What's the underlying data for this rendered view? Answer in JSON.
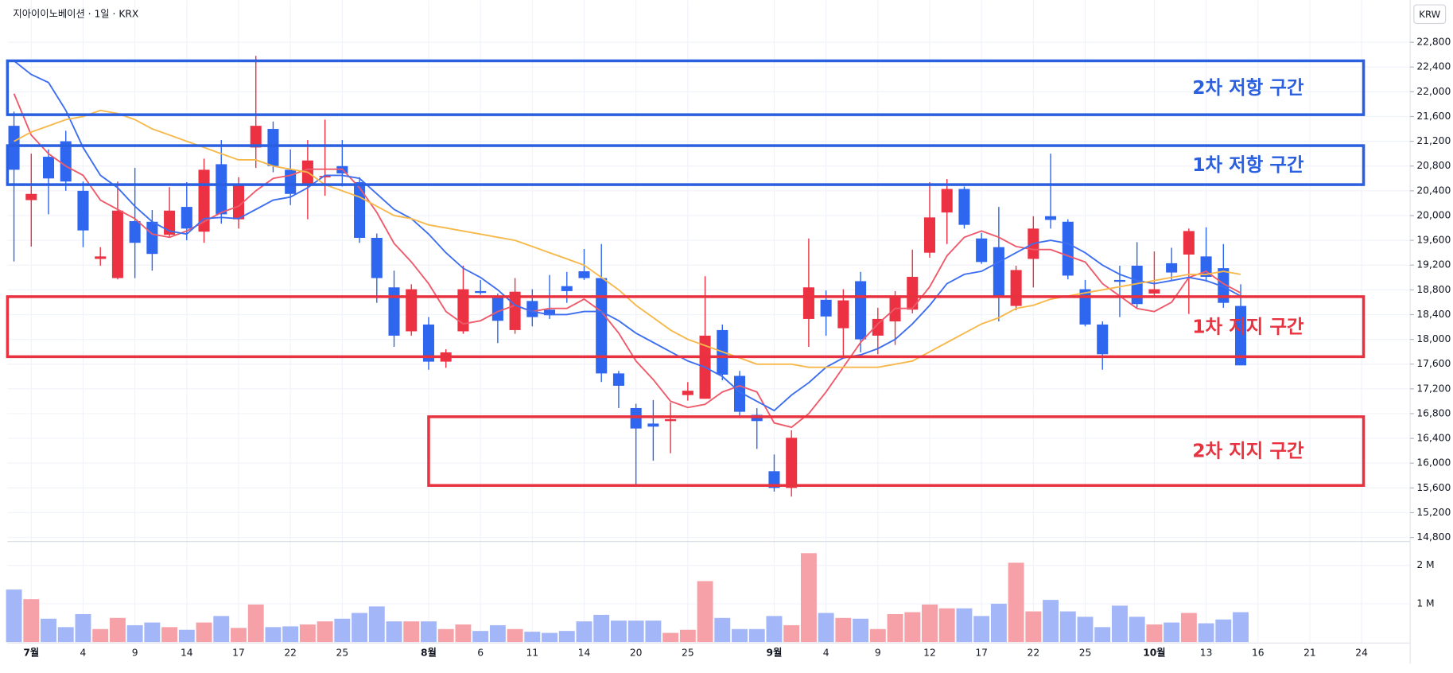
{
  "chart_data": {
    "type": "candlestick",
    "title": "지아이이노베이션 · 1일 · KRX",
    "currency": "KRW",
    "up_color": "#eb3142",
    "down_color": "#2f66f0",
    "volume_up_color": "#f6a0a8",
    "volume_down_color": "#a3b6f8",
    "grid": true,
    "categories": [
      null,
      "7월",
      null,
      null,
      "4",
      null,
      null,
      "9",
      null,
      null,
      "14",
      null,
      null,
      "17",
      null,
      null,
      "22",
      null,
      null,
      "25",
      null,
      null,
      null,
      null,
      "8월",
      null,
      null,
      "6",
      null,
      null,
      "11",
      null,
      null,
      "14",
      null,
      null,
      "20",
      null,
      null,
      "25",
      null,
      null,
      null,
      null,
      "9월",
      null,
      null,
      "4",
      null,
      null,
      "9",
      null,
      null,
      "12",
      null,
      null,
      "17",
      null,
      null,
      "22",
      null,
      null,
      "25",
      null,
      null,
      null,
      "10월",
      null,
      null,
      "13",
      null,
      null,
      "16",
      null,
      null,
      "21",
      null,
      null,
      "24"
    ],
    "open": [
      21450,
      20250,
      20950,
      21200,
      20400,
      19300,
      18990,
      19910,
      19900,
      19690,
      20140,
      19740,
      20830,
      19940,
      21100,
      21400,
      20740,
      20500,
      20620,
      20800,
      20540,
      19640,
      18840,
      18130,
      18240,
      17640,
      18130,
      18780,
      18690,
      18150,
      18620,
      18480,
      18860,
      19100,
      18990,
      17450,
      16890,
      16640,
      16680,
      17100,
      17040,
      18150,
      17410,
      16780,
      15870,
      15600,
      18330,
      18640,
      18180,
      18940,
      18060,
      18290,
      18480,
      19400,
      20050,
      20430,
      19630,
      19490,
      18540,
      19300,
      19990,
      19900,
      18810,
      18240,
      18960,
      19190,
      18740,
      19230,
      19370,
      19340,
      19150,
      18540,
      null,
      null,
      null,
      null,
      null,
      null,
      null
    ],
    "high": [
      21680,
      21000,
      21070,
      21370,
      20550,
      19490,
      20550,
      20770,
      20090,
      20460,
      20540,
      20920,
      21220,
      20620,
      22580,
      21520,
      21070,
      21220,
      21550,
      21220,
      20620,
      19710,
      19110,
      18890,
      18360,
      17840,
      19190,
      18960,
      18740,
      18990,
      18810,
      19040,
      19090,
      19460,
      19540,
      17490,
      16960,
      17020,
      16980,
      17310,
      19020,
      18240,
      17490,
      16890,
      16140,
      16530,
      19630,
      18790,
      18810,
      19090,
      18510,
      18780,
      19450,
      20540,
      20590,
      20470,
      19720,
      20140,
      19190,
      19990,
      21000,
      19940,
      18960,
      18290,
      19190,
      19570,
      19420,
      19480,
      19790,
      19810,
      19540,
      18890,
      null,
      null,
      null,
      null,
      null,
      null,
      null
    ],
    "low": [
      19260,
      19500,
      20020,
      20400,
      19490,
      19190,
      18970,
      18990,
      19110,
      19640,
      19600,
      19560,
      19870,
      19790,
      20770,
      20700,
      20170,
      19940,
      20320,
      20470,
      19560,
      18590,
      17880,
      18060,
      17510,
      17540,
      18090,
      18720,
      17940,
      18090,
      18210,
      18330,
      18590,
      18960,
      17310,
      16890,
      15630,
      16040,
      16160,
      17010,
      17040,
      17340,
      16740,
      16230,
      15540,
      15460,
      17880,
      18060,
      17690,
      17790,
      17760,
      17910,
      18420,
      19320,
      19540,
      19790,
      19220,
      18290,
      18470,
      18840,
      19790,
      18970,
      18210,
      17510,
      18360,
      18510,
      18690,
      18960,
      18410,
      18930,
      18510,
      17580,
      null,
      null,
      null,
      null,
      null,
      null,
      null
    ],
    "close": [
      20740,
      20350,
      20600,
      20550,
      19760,
      19340,
      20080,
      19560,
      19380,
      20080,
      19790,
      20740,
      20020,
      20500,
      21450,
      20800,
      20350,
      20890,
      20640,
      20680,
      19640,
      18990,
      18060,
      18810,
      17640,
      17790,
      18810,
      18750,
      18300,
      18770,
      18360,
      18390,
      18780,
      18990,
      17450,
      17250,
      16560,
      16590,
      16710,
      17170,
      18060,
      17430,
      16830,
      16680,
      15600,
      16410,
      18840,
      18370,
      18630,
      18000,
      18330,
      18690,
      19010,
      19970,
      20430,
      19850,
      19250,
      18700,
      19120,
      19790,
      19930,
      19030,
      18240,
      17760,
      18930,
      18570,
      18810,
      19080,
      19750,
      19010,
      18590,
      17580,
      null,
      null,
      null,
      null,
      null,
      null,
      null
    ],
    "ylim": [
      14750,
      23480
    ],
    "yticks": [
      {
        "value": 14800,
        "label": "14,800"
      },
      {
        "value": 15200,
        "label": "15,200"
      },
      {
        "value": 15600,
        "label": "15,600"
      },
      {
        "value": 16000,
        "label": "16,000"
      },
      {
        "value": 16400,
        "label": "16,400"
      },
      {
        "value": 16800,
        "label": "16,800"
      },
      {
        "value": 17200,
        "label": "17,200"
      },
      {
        "value": 17600,
        "label": "17,600"
      },
      {
        "value": 18000,
        "label": "18,000"
      },
      {
        "value": 18400,
        "label": "18,400"
      },
      {
        "value": 18800,
        "label": "18,800"
      },
      {
        "value": 19200,
        "label": "19,200"
      },
      {
        "value": 19600,
        "label": "19,600"
      },
      {
        "value": 20000,
        "label": "20,000"
      },
      {
        "value": 20400,
        "label": "20,400"
      },
      {
        "value": 20800,
        "label": "20,800"
      },
      {
        "value": 21200,
        "label": "21,200"
      },
      {
        "value": 21600,
        "label": "21,600"
      },
      {
        "value": 22000,
        "label": "22,000"
      },
      {
        "value": 22400,
        "label": "22,400"
      },
      {
        "value": 22800,
        "label": "22,800"
      }
    ],
    "moving_averages": [
      {
        "color": "#ef5a6a",
        "values": [
          21970,
          21300,
          21000,
          20800,
          20650,
          20250,
          20100,
          19950,
          19700,
          19650,
          19750,
          19900,
          20050,
          20150,
          20400,
          20600,
          20650,
          20750,
          20750,
          20750,
          20450,
          20050,
          19550,
          19250,
          18900,
          18450,
          18250,
          18300,
          18450,
          18550,
          18450,
          18500,
          18500,
          18650,
          18450,
          18100,
          17650,
          17350,
          17000,
          16900,
          16950,
          17150,
          17250,
          17150,
          16650,
          16580,
          16800,
          17150,
          17550,
          17950,
          18250,
          18500,
          18500,
          18850,
          19350,
          19650,
          19750,
          19650,
          19500,
          19450,
          19450,
          19350,
          19250,
          18900,
          18700,
          18500,
          18450,
          18600,
          19000,
          19100,
          18900,
          18750,
          null,
          null,
          null,
          null,
          null,
          null,
          null
        ]
      },
      {
        "color": "#3d6ef0",
        "values": [
          22500,
          22280,
          22150,
          21700,
          21100,
          20650,
          20450,
          20150,
          19900,
          19750,
          19700,
          19950,
          19970,
          19950,
          20100,
          20250,
          20300,
          20450,
          20650,
          20650,
          20600,
          20350,
          20100,
          19950,
          19700,
          19400,
          19150,
          19000,
          18800,
          18550,
          18450,
          18400,
          18400,
          18450,
          18450,
          18300,
          18100,
          17950,
          17800,
          17650,
          17550,
          17400,
          17150,
          17000,
          16850,
          17100,
          17300,
          17550,
          17700,
          17750,
          17850,
          18000,
          18250,
          18550,
          18900,
          19050,
          19100,
          19250,
          19400,
          19550,
          19600,
          19550,
          19400,
          19200,
          19050,
          18950,
          18900,
          18950,
          19000,
          18950,
          18850,
          18700,
          null,
          null,
          null,
          null,
          null,
          null,
          null
        ]
      },
      {
        "color": "#f7b84a",
        "values": [
          21200,
          21350,
          21450,
          21550,
          21600,
          21700,
          21650,
          21550,
          21400,
          21300,
          21200,
          21100,
          21000,
          20900,
          20900,
          20800,
          20750,
          20700,
          20500,
          20400,
          20300,
          20150,
          20000,
          19950,
          19850,
          19800,
          19750,
          19700,
          19650,
          19600,
          19500,
          19400,
          19300,
          19200,
          19000,
          18800,
          18550,
          18350,
          18150,
          18000,
          17900,
          17800,
          17700,
          17600,
          17600,
          17600,
          17550,
          17550,
          17550,
          17550,
          17550,
          17600,
          17650,
          17800,
          17950,
          18100,
          18250,
          18350,
          18500,
          18550,
          18650,
          18700,
          18750,
          18800,
          18850,
          18900,
          18950,
          19000,
          19050,
          19050,
          19100,
          19050,
          null,
          null,
          null,
          null,
          null,
          null,
          null
        ]
      }
    ],
    "volume": {
      "values": [
        1370000,
        1120000,
        610000,
        390000,
        730000,
        340000,
        630000,
        440000,
        510000,
        390000,
        320000,
        510000,
        680000,
        370000,
        980000,
        390000,
        410000,
        460000,
        540000,
        610000,
        760000,
        930000,
        540000,
        540000,
        540000,
        340000,
        460000,
        290000,
        440000,
        340000,
        270000,
        240000,
        290000,
        540000,
        710000,
        560000,
        560000,
        560000,
        240000,
        320000,
        1590000,
        630000,
        340000,
        340000,
        680000,
        440000,
        2320000,
        760000,
        630000,
        610000,
        340000,
        730000,
        780000,
        980000,
        880000,
        880000,
        680000,
        1000000,
        2070000,
        800000,
        1100000,
        800000,
        660000,
        390000,
        950000,
        660000,
        460000,
        510000,
        760000,
        490000,
        590000,
        780000,
        null,
        null,
        null,
        null,
        null,
        null,
        null
      ],
      "ylim": [
        0,
        2600000
      ],
      "yticks": [
        {
          "value": 1000000,
          "label": "1 M"
        },
        {
          "value": 2000000,
          "label": "2 M"
        }
      ]
    },
    "zones": [
      {
        "label": "2차 저항 구간",
        "low": 21630,
        "high": 22500,
        "color": "#2a5fe0"
      },
      {
        "label": "1차 저항 구간",
        "low": 20500,
        "high": 21130,
        "color": "#2a5fe0"
      },
      {
        "label": "1차 지지 구간",
        "low": 17720,
        "high": 18690,
        "color": "#e8323f"
      },
      {
        "label": "2차 지지 구간",
        "low": 15640,
        "high": 16750,
        "color": "#e8323f"
      }
    ]
  }
}
